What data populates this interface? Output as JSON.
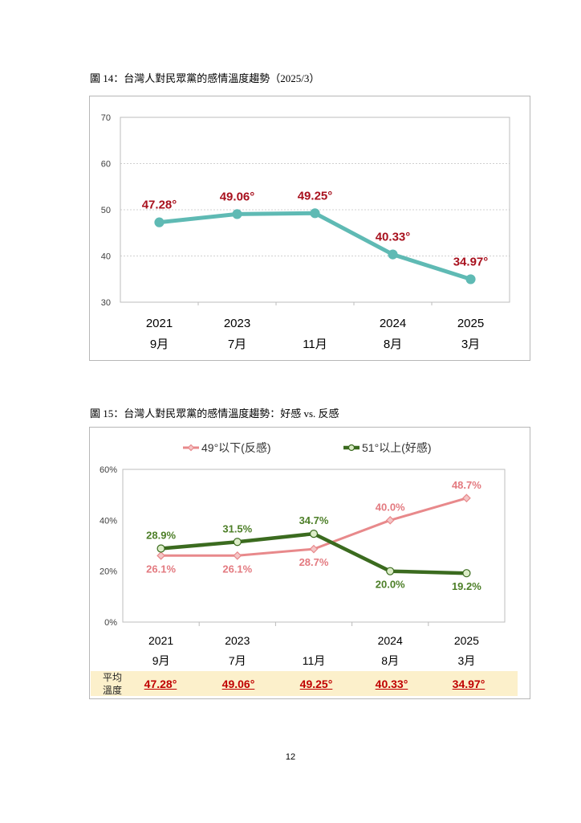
{
  "page": {
    "number": "12"
  },
  "chart_data": [
    {
      "type": "line",
      "title": "圖 14：台灣人對民眾黨的感情溫度趨勢（2025/3）",
      "categories": [
        {
          "year": "2021",
          "month": "9月"
        },
        {
          "year": "2023",
          "month": "7月"
        },
        {
          "year": "",
          "month": "11月"
        },
        {
          "year": "2024",
          "month": "8月"
        },
        {
          "year": "2025",
          "month": "3月"
        }
      ],
      "ylim": [
        30,
        70
      ],
      "yticks": [
        30,
        40,
        50,
        60,
        70
      ],
      "ytick_labels": [
        "30",
        "40",
        "50",
        "60",
        "70"
      ],
      "grid": true,
      "series": [
        {
          "values": [
            47.28,
            49.06,
            49.25,
            40.33,
            34.97
          ],
          "data_labels": [
            "47.28°",
            "49.06°",
            "49.25°",
            "40.33°",
            "34.97°"
          ],
          "color": "#5fbab4",
          "marker": "circle",
          "marker_fill": "#5fbab4",
          "label_color": "#a8111e"
        }
      ]
    },
    {
      "type": "line",
      "title": "圖 15：台灣人對民眾黨的感情溫度趨勢：好感 vs. 反感",
      "categories": [
        {
          "year": "2021",
          "month": "9月"
        },
        {
          "year": "2023",
          "month": "7月"
        },
        {
          "year": "",
          "month": "11月"
        },
        {
          "year": "2024",
          "month": "8月"
        },
        {
          "year": "2025",
          "month": "3月"
        }
      ],
      "ylim": [
        0,
        60
      ],
      "yticks": [
        0,
        20,
        40,
        60
      ],
      "ytick_labels": [
        "0%",
        "20%",
        "40%",
        "60%"
      ],
      "grid": false,
      "legend": "top",
      "series": [
        {
          "name": "49°以下(反感)",
          "values": [
            26.1,
            26.1,
            28.7,
            40.0,
            48.7
          ],
          "data_labels": [
            "26.1%",
            "26.1%",
            "28.7%",
            "40.0%",
            "48.7%"
          ],
          "color": "#e8898b",
          "marker": "diamond",
          "marker_fill": "#f4c6c7",
          "label_color": "#e37a80"
        },
        {
          "name": "51°以上(好感)",
          "values": [
            28.9,
            31.5,
            34.7,
            20.0,
            19.2
          ],
          "data_labels": [
            "28.9%",
            "31.5%",
            "34.7%",
            "20.0%",
            "19.2%"
          ],
          "color": "#3b6b1f",
          "marker": "circle",
          "marker_fill": "#dcedc8",
          "label_color": "#4d7f28"
        }
      ],
      "table_row": {
        "label": [
          "平均",
          "溫度"
        ],
        "values": [
          "47.28°",
          "49.06°",
          "49.25°",
          "40.33°",
          "34.97°"
        ],
        "background": "#fcf0cb",
        "value_color": "#c00000"
      }
    }
  ]
}
